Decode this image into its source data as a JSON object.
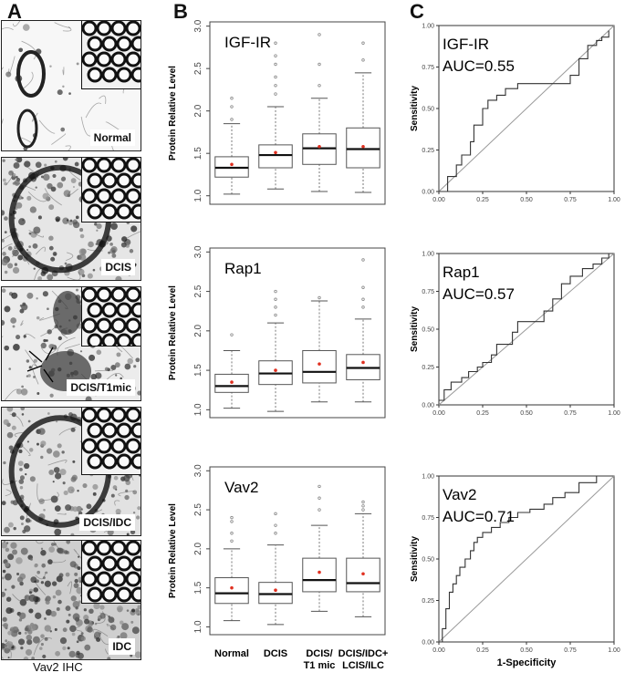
{
  "panels": {
    "a": "A",
    "b": "B",
    "c": "C"
  },
  "micrographs": [
    {
      "label": "Normal",
      "style": "normal"
    },
    {
      "label": "DCIS",
      "style": "dcis"
    },
    {
      "label": "DCIS/T1mic",
      "style": "t1mic"
    },
    {
      "label": "DCIS/IDC",
      "style": "dcisidc"
    },
    {
      "label": "IDC",
      "style": "idc"
    }
  ],
  "ihc_caption": "Vav2  IHC",
  "boxplot_ylabel": "Protein Relative Level",
  "roc_xlabel": "1-Specificity",
  "roc_ylabel": "Sensitivity",
  "group_labels": [
    {
      "line1": "Normal",
      "line2": ""
    },
    {
      "line1": "DCIS",
      "line2": ""
    },
    {
      "line1": "DCIS/",
      "line2": "T1 mic"
    },
    {
      "line1": "DCIS/IDC+",
      "line2": "LCIS/ILC"
    }
  ],
  "chart_data": [
    {
      "type": "boxplot",
      "title": "IGF-IR",
      "ylabel": "Protein Relative Level",
      "ylim": [
        0.9,
        3.05
      ],
      "yticks": [
        "1.0",
        "1.5",
        "2.0",
        "2.5",
        "3.0"
      ],
      "categories": [
        "Normal",
        "DCIS",
        "DCIS/T1 mic",
        "DCIS/IDC+LCIS/ILC"
      ],
      "boxes": [
        {
          "whislo": 1.02,
          "q1": 1.22,
          "med": 1.33,
          "q3": 1.46,
          "whishi": 1.85,
          "mean": 1.37,
          "fliers": [
            1.9,
            2.05,
            2.15
          ]
        },
        {
          "whislo": 1.08,
          "q1": 1.33,
          "med": 1.48,
          "q3": 1.6,
          "whishi": 2.05,
          "mean": 1.51,
          "fliers": [
            2.2,
            2.3,
            2.4,
            2.55,
            2.65,
            2.8
          ]
        },
        {
          "whislo": 1.05,
          "q1": 1.37,
          "med": 1.56,
          "q3": 1.73,
          "whishi": 2.15,
          "mean": 1.58,
          "fliers": [
            2.3,
            2.55,
            2.9
          ]
        },
        {
          "whislo": 1.04,
          "q1": 1.33,
          "med": 1.55,
          "q3": 1.8,
          "whishi": 2.45,
          "mean": 1.58,
          "fliers": [
            2.6,
            2.8
          ]
        }
      ]
    },
    {
      "type": "boxplot",
      "title": "Rap1",
      "ylabel": "Protein Relative Level",
      "ylim": [
        0.9,
        3.05
      ],
      "yticks": [
        "1.0",
        "1.5",
        "2.0",
        "2.5",
        "3.0"
      ],
      "categories": [
        "Normal",
        "DCIS",
        "DCIS/T1 mic",
        "DCIS/IDC+LCIS/ILC"
      ],
      "boxes": [
        {
          "whislo": 1.02,
          "q1": 1.22,
          "med": 1.3,
          "q3": 1.45,
          "whishi": 1.75,
          "mean": 1.35,
          "fliers": [
            1.95
          ]
        },
        {
          "whislo": 0.98,
          "q1": 1.32,
          "med": 1.46,
          "q3": 1.62,
          "whishi": 2.1,
          "mean": 1.5,
          "fliers": [
            2.2,
            2.3,
            2.4,
            2.5
          ]
        },
        {
          "whislo": 1.1,
          "q1": 1.34,
          "med": 1.48,
          "q3": 1.75,
          "whishi": 2.38,
          "mean": 1.58,
          "fliers": [
            2.42
          ]
        },
        {
          "whislo": 1.1,
          "q1": 1.38,
          "med": 1.53,
          "q3": 1.7,
          "whishi": 2.15,
          "mean": 1.6,
          "fliers": [
            2.3,
            2.4,
            2.55,
            2.9
          ]
        }
      ]
    },
    {
      "type": "boxplot",
      "title": "Vav2",
      "ylabel": "Protein Relative Level",
      "ylim": [
        0.9,
        3.05
      ],
      "yticks": [
        "1.0",
        "1.5",
        "2.0",
        "2.5",
        "3.0"
      ],
      "categories": [
        "Normal",
        "DCIS",
        "DCIS/T1 mic",
        "DCIS/IDC+LCIS/ILC"
      ],
      "boxes": [
        {
          "whislo": 1.08,
          "q1": 1.3,
          "med": 1.43,
          "q3": 1.63,
          "whishi": 2.0,
          "mean": 1.5,
          "fliers": [
            2.1,
            2.2,
            2.35,
            2.4
          ]
        },
        {
          "whislo": 1.03,
          "q1": 1.3,
          "med": 1.42,
          "q3": 1.57,
          "whishi": 2.05,
          "mean": 1.47,
          "fliers": [
            2.2,
            2.3,
            2.45
          ]
        },
        {
          "whislo": 1.2,
          "q1": 1.45,
          "med": 1.6,
          "q3": 1.88,
          "whishi": 2.3,
          "mean": 1.7,
          "fliers": [
            2.5,
            2.65,
            2.8
          ]
        },
        {
          "whislo": 1.13,
          "q1": 1.45,
          "med": 1.56,
          "q3": 1.88,
          "whishi": 2.45,
          "mean": 1.68,
          "fliers": [
            2.5,
            2.55,
            2.6
          ]
        }
      ]
    },
    {
      "type": "line",
      "title": "IGF-IR",
      "annotation": "AUC=0.55",
      "xlabel": "1-Specificity",
      "ylabel": "Sensitivity",
      "xlim": [
        0,
        1
      ],
      "ylim": [
        0,
        1
      ],
      "xticks": [
        "0.00",
        "0.25",
        "0.50",
        "0.75",
        "1.00"
      ],
      "yticks": [
        "0.00",
        "0.25",
        "0.50",
        "0.75",
        "1.00"
      ],
      "x": [
        0,
        0.05,
        0.05,
        0.1,
        0.1,
        0.13,
        0.13,
        0.18,
        0.18,
        0.2,
        0.2,
        0.25,
        0.25,
        0.28,
        0.28,
        0.33,
        0.33,
        0.38,
        0.38,
        0.45,
        0.45,
        0.75,
        0.75,
        0.8,
        0.8,
        0.85,
        0.85,
        0.9,
        0.9,
        0.93,
        0.93,
        0.97,
        0.97
      ],
      "y": [
        0,
        0,
        0.09,
        0.09,
        0.16,
        0.16,
        0.22,
        0.22,
        0.3,
        0.3,
        0.4,
        0.4,
        0.5,
        0.5,
        0.55,
        0.55,
        0.58,
        0.58,
        0.62,
        0.62,
        0.65,
        0.65,
        0.7,
        0.7,
        0.8,
        0.8,
        0.88,
        0.88,
        0.91,
        0.91,
        0.93,
        0.93,
        0.97
      ]
    },
    {
      "type": "line",
      "title": "Rap1",
      "annotation": "AUC=0.57",
      "xlabel": "1-Specificity",
      "ylabel": "Sensitivity",
      "xlim": [
        0,
        1
      ],
      "ylim": [
        0,
        1
      ],
      "xticks": [
        "0.00",
        "0.25",
        "0.50",
        "0.75",
        "1.00"
      ],
      "yticks": [
        "0.00",
        "0.25",
        "0.50",
        "0.75",
        "1.00"
      ],
      "x": [
        0,
        0.03,
        0.03,
        0.07,
        0.07,
        0.13,
        0.13,
        0.17,
        0.17,
        0.22,
        0.22,
        0.25,
        0.25,
        0.3,
        0.3,
        0.33,
        0.33,
        0.42,
        0.42,
        0.45,
        0.45,
        0.52,
        0.52,
        0.6,
        0.6,
        0.65,
        0.65,
        0.7,
        0.7,
        0.75,
        0.75,
        0.82,
        0.82,
        0.88,
        0.88,
        0.93,
        0.93,
        0.97,
        0.97
      ],
      "y": [
        0.03,
        0.03,
        0.1,
        0.1,
        0.15,
        0.15,
        0.18,
        0.18,
        0.22,
        0.22,
        0.25,
        0.25,
        0.28,
        0.28,
        0.33,
        0.33,
        0.4,
        0.4,
        0.48,
        0.48,
        0.55,
        0.55,
        0.55,
        0.55,
        0.62,
        0.62,
        0.7,
        0.7,
        0.8,
        0.8,
        0.85,
        0.85,
        0.9,
        0.9,
        0.93,
        0.93,
        0.97,
        0.97,
        1.0
      ]
    },
    {
      "type": "line",
      "title": "Vav2",
      "annotation": "AUC=0.71",
      "xlabel": "1-Specificity",
      "ylabel": "Sensitivity",
      "xlim": [
        0,
        1
      ],
      "ylim": [
        0,
        1
      ],
      "xticks": [
        "0.00",
        "0.25",
        "0.50",
        "0.75",
        "1.00"
      ],
      "yticks": [
        "0.00",
        "0.25",
        "0.50",
        "0.75",
        "1.00"
      ],
      "x": [
        0,
        0.02,
        0.02,
        0.04,
        0.04,
        0.06,
        0.06,
        0.08,
        0.08,
        0.1,
        0.1,
        0.12,
        0.12,
        0.15,
        0.15,
        0.18,
        0.18,
        0.2,
        0.2,
        0.22,
        0.22,
        0.25,
        0.25,
        0.3,
        0.3,
        0.35,
        0.35,
        0.4,
        0.4,
        0.45,
        0.45,
        0.52,
        0.52,
        0.6,
        0.6,
        0.65,
        0.65,
        0.72,
        0.72,
        0.8,
        0.8,
        0.9,
        0.9,
        0.97
      ],
      "y": [
        0,
        0,
        0.08,
        0.08,
        0.2,
        0.2,
        0.3,
        0.3,
        0.35,
        0.35,
        0.4,
        0.4,
        0.45,
        0.45,
        0.5,
        0.5,
        0.55,
        0.55,
        0.6,
        0.6,
        0.63,
        0.63,
        0.66,
        0.66,
        0.69,
        0.69,
        0.72,
        0.72,
        0.75,
        0.75,
        0.78,
        0.78,
        0.8,
        0.8,
        0.83,
        0.83,
        0.87,
        0.87,
        0.9,
        0.9,
        0.96,
        0.96,
        1.0,
        1.0
      ]
    }
  ]
}
